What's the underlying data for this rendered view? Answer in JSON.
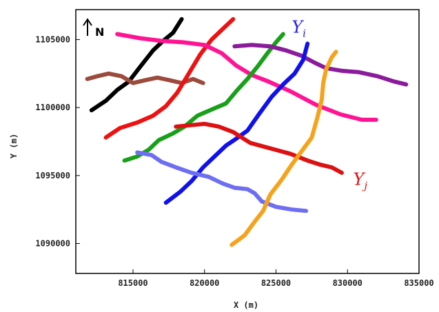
{
  "chart_data": {
    "type": "line",
    "title": "",
    "xlabel": "X (m)",
    "ylabel": "Y (m)",
    "xlim": [
      811000,
      835000
    ],
    "ylim": [
      1087800,
      1107200
    ],
    "grid": false,
    "x_ticks": [
      815000,
      820000,
      825000,
      830000,
      835000
    ],
    "x_tick_labels": [
      "815000",
      "820000",
      "825000",
      "830000",
      "835000"
    ],
    "y_ticks": [
      1090000,
      1095000,
      1100000,
      1105000
    ],
    "y_tick_labels": [
      "1090000",
      "1095000",
      "1100000",
      "1105000"
    ],
    "north_label": "N",
    "annotations": [
      {
        "base": "Y",
        "sub": "i",
        "color": "#2222ee",
        "x": 826100,
        "y": 1105500
      },
      {
        "base": "Y",
        "sub": "j",
        "color": "#dd1111",
        "x": 830400,
        "y": 1094300
      }
    ],
    "series": [
      {
        "color": "#000000",
        "points": [
          [
            812100,
            1099800
          ],
          [
            813100,
            1100500
          ],
          [
            813900,
            1101300
          ],
          [
            814700,
            1101900
          ],
          [
            815500,
            1103000
          ],
          [
            816400,
            1104200
          ],
          [
            817100,
            1104900
          ],
          [
            817800,
            1105500
          ],
          [
            818400,
            1106500
          ]
        ]
      },
      {
        "color": "#9b4a3c",
        "points": [
          [
            811800,
            1102100
          ],
          [
            812500,
            1102300
          ],
          [
            813300,
            1102500
          ],
          [
            814200,
            1102300
          ],
          [
            815000,
            1101800
          ],
          [
            815800,
            1102000
          ],
          [
            816700,
            1102200
          ],
          [
            817600,
            1102000
          ],
          [
            818400,
            1101800
          ],
          [
            819200,
            1102100
          ],
          [
            819900,
            1101800
          ]
        ]
      },
      {
        "color": "#ee1111",
        "points": [
          [
            813100,
            1097800
          ],
          [
            814100,
            1098500
          ],
          [
            815300,
            1098900
          ],
          [
            816400,
            1099400
          ],
          [
            817300,
            1100100
          ],
          [
            818100,
            1101100
          ],
          [
            818900,
            1102500
          ],
          [
            819700,
            1103900
          ],
          [
            820500,
            1105000
          ],
          [
            821300,
            1105800
          ],
          [
            822000,
            1106500
          ]
        ]
      },
      {
        "color": "#ff1493",
        "points": [
          [
            813900,
            1105400
          ],
          [
            815500,
            1105100
          ],
          [
            817000,
            1104900
          ],
          [
            818500,
            1104800
          ],
          [
            820000,
            1104600
          ],
          [
            821200,
            1104000
          ],
          [
            822200,
            1103100
          ],
          [
            823300,
            1102400
          ],
          [
            824500,
            1101900
          ],
          [
            826000,
            1101200
          ],
          [
            827800,
            1100200
          ],
          [
            829500,
            1099500
          ],
          [
            831000,
            1099100
          ],
          [
            832000,
            1099100
          ]
        ]
      },
      {
        "color": "#18a018",
        "points": [
          [
            814400,
            1096100
          ],
          [
            815300,
            1096400
          ],
          [
            816100,
            1096900
          ],
          [
            816800,
            1097600
          ],
          [
            817800,
            1098100
          ],
          [
            818600,
            1098600
          ],
          [
            819500,
            1099400
          ],
          [
            820600,
            1099900
          ],
          [
            821500,
            1100300
          ],
          [
            822300,
            1101300
          ],
          [
            823000,
            1102100
          ],
          [
            823700,
            1103000
          ],
          [
            824400,
            1104000
          ],
          [
            825000,
            1104800
          ],
          [
            825500,
            1105400
          ]
        ]
      },
      {
        "color": "#8a1c9c",
        "points": [
          [
            822100,
            1104500
          ],
          [
            823300,
            1104600
          ],
          [
            824600,
            1104500
          ],
          [
            825700,
            1104200
          ],
          [
            826800,
            1103800
          ],
          [
            827700,
            1103300
          ],
          [
            828500,
            1102900
          ],
          [
            829600,
            1102700
          ],
          [
            830800,
            1102600
          ],
          [
            832100,
            1102300
          ],
          [
            833300,
            1101900
          ],
          [
            834100,
            1101700
          ]
        ]
      },
      {
        "color": "#1010ee",
        "points": [
          [
            817300,
            1093000
          ],
          [
            818300,
            1093800
          ],
          [
            819100,
            1094600
          ],
          [
            819900,
            1095600
          ],
          [
            820600,
            1096300
          ],
          [
            821500,
            1097200
          ],
          [
            822200,
            1097700
          ],
          [
            823000,
            1098300
          ],
          [
            823800,
            1099500
          ],
          [
            824700,
            1100800
          ],
          [
            825500,
            1101700
          ],
          [
            826300,
            1102500
          ],
          [
            826900,
            1103500
          ],
          [
            827200,
            1104700
          ]
        ]
      },
      {
        "color": "#dd1111",
        "points": [
          [
            818000,
            1098600
          ],
          [
            819000,
            1098700
          ],
          [
            820000,
            1098800
          ],
          [
            821000,
            1098600
          ],
          [
            822000,
            1098200
          ],
          [
            823200,
            1097400
          ],
          [
            824600,
            1097000
          ],
          [
            826000,
            1096600
          ],
          [
            827200,
            1096100
          ],
          [
            828100,
            1095800
          ],
          [
            828900,
            1095600
          ],
          [
            829600,
            1095200
          ]
        ]
      },
      {
        "color": "#6e6ef2",
        "points": [
          [
            815300,
            1096700
          ],
          [
            816300,
            1096500
          ],
          [
            817000,
            1096000
          ],
          [
            818000,
            1095600
          ],
          [
            819100,
            1095200
          ],
          [
            820300,
            1094900
          ],
          [
            821300,
            1094400
          ],
          [
            822100,
            1094100
          ],
          [
            823000,
            1094000
          ],
          [
            823500,
            1093700
          ],
          [
            824000,
            1093100
          ],
          [
            825000,
            1092700
          ],
          [
            826100,
            1092500
          ],
          [
            827100,
            1092400
          ]
        ]
      },
      {
        "color": "#f7a21b",
        "points": [
          [
            821900,
            1089900
          ],
          [
            822800,
            1090600
          ],
          [
            823500,
            1091600
          ],
          [
            824100,
            1092400
          ],
          [
            824600,
            1093600
          ],
          [
            825400,
            1094700
          ],
          [
            826100,
            1095800
          ],
          [
            826800,
            1096800
          ],
          [
            827500,
            1097800
          ],
          [
            827900,
            1099300
          ],
          [
            828200,
            1100600
          ],
          [
            828300,
            1101800
          ],
          [
            828500,
            1102800
          ],
          [
            828900,
            1103700
          ],
          [
            829200,
            1104100
          ]
        ]
      }
    ]
  }
}
